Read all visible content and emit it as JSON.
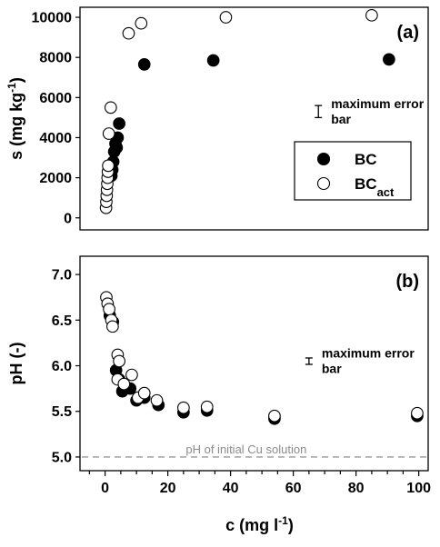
{
  "chart_data": [
    {
      "type": "scatter",
      "panel_label": "(a)",
      "ylabel": "s (mg kg",
      "ylabel_sup": "-1",
      "ylabel_close": ")",
      "xlim": [
        -8,
        103
      ],
      "ylim": [
        -600,
        10500
      ],
      "yticks": [
        0,
        2000,
        4000,
        6000,
        8000,
        10000
      ],
      "grid": false,
      "legend": {
        "position": "right",
        "entries": [
          {
            "label": "BC",
            "sub": "",
            "marker": "filled-circle"
          },
          {
            "label": "BC",
            "sub": "act",
            "marker": "open-circle"
          }
        ]
      },
      "annotation": {
        "text_lines": [
          "maximum error",
          "bar"
        ],
        "x": 68,
        "y_center": 5300,
        "half_range": 300
      },
      "series": [
        {
          "name": "BC",
          "marker": "filled",
          "points": [
            [
              2.0,
              2100
            ],
            [
              2.3,
              2400
            ],
            [
              2.6,
              2800
            ],
            [
              2.9,
              3300
            ],
            [
              3.3,
              3700
            ],
            [
              3.7,
              3500
            ],
            [
              4.0,
              4000
            ],
            [
              4.5,
              4700
            ],
            [
              12.5,
              7650
            ],
            [
              34.5,
              7850
            ],
            [
              90.5,
              7900
            ]
          ]
        },
        {
          "name": "BC act",
          "marker": "open",
          "points": [
            [
              0.3,
              500
            ],
            [
              0.4,
              800
            ],
            [
              0.5,
              1100
            ],
            [
              0.6,
              1400
            ],
            [
              0.7,
              1700
            ],
            [
              0.8,
              2000
            ],
            [
              0.9,
              2300
            ],
            [
              1.0,
              2600
            ],
            [
              1.2,
              4200
            ],
            [
              1.8,
              5500
            ],
            [
              7.5,
              9200
            ],
            [
              11.5,
              9700
            ],
            [
              38.5,
              10000
            ],
            [
              85,
              10100
            ]
          ]
        }
      ]
    },
    {
      "type": "scatter",
      "panel_label": "(b)",
      "ylabel": "pH (-)",
      "xlabel": "c (mg l",
      "xlabel_sup": "-1",
      "xlabel_close": ")",
      "xlim": [
        -8,
        103
      ],
      "ylim": [
        4.85,
        7.2
      ],
      "yticks": [
        5.0,
        5.5,
        6.0,
        6.5,
        7.0
      ],
      "xticks": [
        0,
        20,
        40,
        60,
        80,
        100
      ],
      "x_minor_step": 5,
      "grid": false,
      "annotation": {
        "text_lines": [
          "maximum error",
          "bar"
        ],
        "x": 65,
        "y_center": 6.05,
        "half_range": 0.035
      },
      "reference_line": {
        "y": 5.0,
        "label": "pH of initial Cu solution",
        "color": "#999999"
      },
      "series": [
        {
          "name": "BC",
          "marker": "filled",
          "points": [
            [
              1.5,
              6.55
            ],
            [
              2.5,
              6.48
            ],
            [
              3.5,
              5.95
            ],
            [
              4.5,
              5.85
            ],
            [
              5.5,
              5.72
            ],
            [
              8.0,
              5.75
            ],
            [
              10.0,
              5.62
            ],
            [
              12.5,
              5.65
            ],
            [
              17.0,
              5.57
            ],
            [
              25.0,
              5.49
            ],
            [
              32.5,
              5.51
            ],
            [
              54.0,
              5.42
            ],
            [
              99.5,
              5.45
            ]
          ]
        },
        {
          "name": "BC act",
          "marker": "open",
          "points": [
            [
              0.4,
              6.75
            ],
            [
              0.8,
              6.68
            ],
            [
              1.3,
              6.62
            ],
            [
              2.0,
              6.5
            ],
            [
              2.4,
              6.43
            ],
            [
              4.0,
              6.12
            ],
            [
              4.5,
              6.05
            ],
            [
              4.0,
              5.85
            ],
            [
              6.0,
              5.8
            ],
            [
              8.5,
              5.9
            ],
            [
              10.5,
              5.65
            ],
            [
              12.5,
              5.7
            ],
            [
              16.5,
              5.62
            ],
            [
              25.0,
              5.54
            ],
            [
              32.5,
              5.55
            ],
            [
              54.0,
              5.45
            ],
            [
              99.5,
              5.48
            ]
          ]
        }
      ]
    }
  ]
}
